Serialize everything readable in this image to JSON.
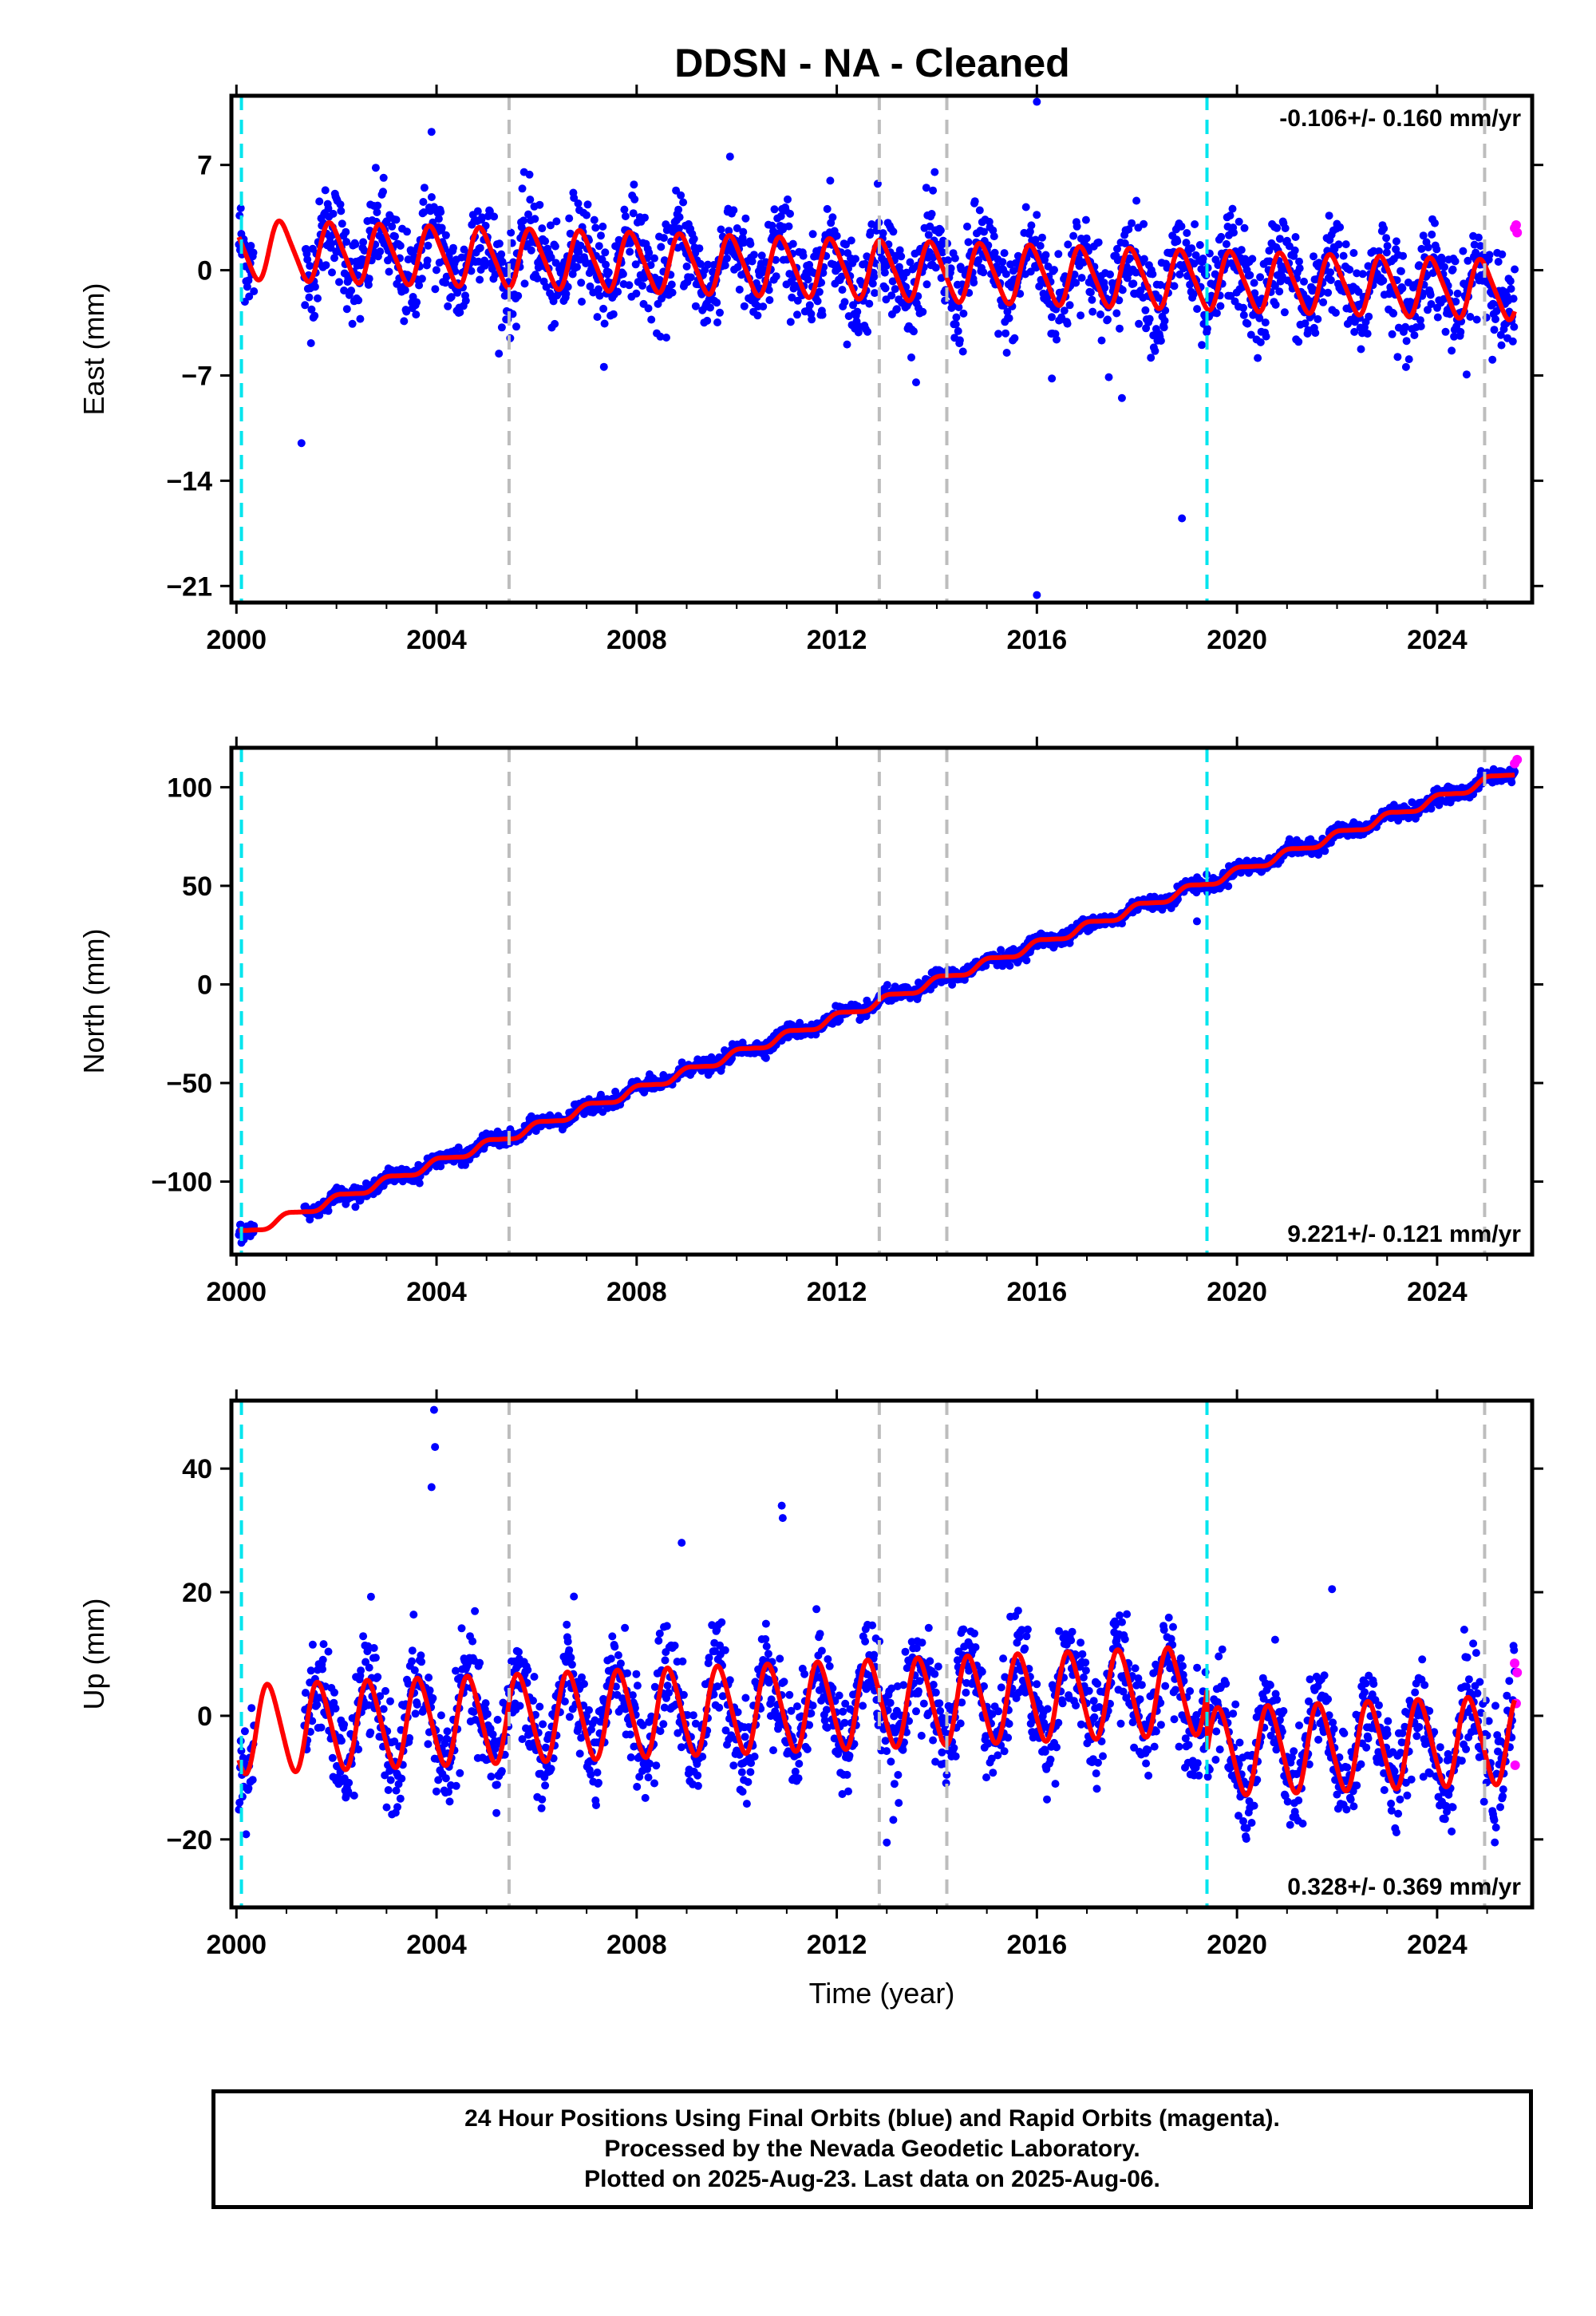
{
  "title": "DDSN  - NA - Cleaned",
  "colors": {
    "final_points": "#0000ff",
    "rapid_points": "#ff00ff",
    "model_line": "#ff0000",
    "event_line_cyan": "#00e5ee",
    "event_line_gray": "#bdbdbd"
  },
  "footer": {
    "line1": "24 Hour Positions Using Final Orbits (blue) and Rapid Orbits (magenta).",
    "line2": "Processed by the Nevada Geodetic Laboratory.",
    "line3": "Plotted on 2025-Aug-23. Last data on 2025-Aug-06."
  },
  "chart_data": [
    {
      "type": "scatter",
      "component": "east",
      "ylabel": "East (mm)",
      "xlabel": "",
      "rate_label": "-0.106+/- 0.160 mm/yr",
      "xlim": [
        1999.9,
        2025.9
      ],
      "ylim": [
        -22.1,
        11.6
      ],
      "xticks": [
        2000,
        2004,
        2008,
        2012,
        2016,
        2020,
        2024
      ],
      "yticks": [
        7,
        0,
        -7,
        -14,
        -21
      ],
      "ytick_labels": [
        "7",
        "0",
        "−7",
        "−14",
        "−21"
      ],
      "event_lines": {
        "cyan": [
          2000.1,
          2019.4
        ],
        "gray": [
          2005.45,
          2012.85,
          2014.2,
          2024.95
        ]
      },
      "model": {
        "intercept": 0.0,
        "rate": -0.106,
        "ref_year": 2013.0,
        "annual_amp": 1.9,
        "semiannual_amp": 0.3,
        "phase": 0.35
      },
      "scatter_sigma": 1.6,
      "outliers": [
        [
          2016.0,
          11.2
        ],
        [
          2016.0,
          -21.6
        ],
        [
          2018.9,
          -16.5
        ],
        [
          2001.3,
          -11.5
        ],
        [
          2003.9,
          9.2
        ],
        [
          2017.7,
          -8.5
        ],
        [
          2016.3,
          -7.2
        ]
      ],
      "rapid_points": [
        [
          2025.55,
          2.8
        ],
        [
          2025.6,
          2.5
        ],
        [
          2025.58,
          3.0
        ]
      ]
    },
    {
      "type": "scatter",
      "component": "north",
      "ylabel": "North (mm)",
      "xlabel": "",
      "rate_label": "9.221+/- 0.121 mm/yr",
      "xlim": [
        1999.9,
        2025.9
      ],
      "ylim": [
        -137,
        120
      ],
      "xticks": [
        2000,
        2004,
        2008,
        2012,
        2016,
        2020,
        2024
      ],
      "yticks": [
        100,
        50,
        0,
        -50,
        -100
      ],
      "ytick_labels": [
        "100",
        "50",
        "0",
        "−50",
        "−100"
      ],
      "event_lines": {
        "cyan": [
          2000.1,
          2019.4
        ],
        "gray": [
          2005.45,
          2012.85,
          2014.2,
          2024.95
        ]
      },
      "model": {
        "intercept": -7.5,
        "rate": 9.221,
        "ref_year": 2013.0,
        "annual_amp": 2.0,
        "semiannual_amp": 0.4,
        "phase": 0.2
      },
      "scatter_sigma": 1.8,
      "outliers": [
        [
          2019.2,
          32.0
        ],
        [
          2000.1,
          -131.0
        ],
        [
          2000.15,
          -128.0
        ]
      ],
      "rapid_points": [
        [
          2025.55,
          112.0
        ],
        [
          2025.6,
          114.0
        ]
      ]
    },
    {
      "type": "scatter",
      "component": "up",
      "ylabel": "Up (mm)",
      "xlabel": "Time (year)",
      "rate_label": "0.328+/- 0.369 mm/yr",
      "xlim": [
        1999.9,
        2025.9
      ],
      "ylim": [
        -31,
        51
      ],
      "xticks": [
        2000,
        2004,
        2008,
        2012,
        2016,
        2020,
        2024
      ],
      "yticks": [
        40,
        20,
        0,
        -20
      ],
      "ytick_labels": [
        "40",
        "20",
        "0",
        "−20"
      ],
      "event_lines": {
        "cyan": [
          2000.1,
          2019.4
        ],
        "gray": [
          2005.45,
          2012.85,
          2014.2,
          2024.95
        ]
      },
      "model": {
        "intercept": 2.0,
        "rate": 0.328,
        "ref_year": 2013.0,
        "annual_amp": 7.0,
        "semiannual_amp": 0.8,
        "phase": 0.6,
        "step_year": 2019.4,
        "step_size": -10.0
      },
      "scatter_sigma": 4.0,
      "outliers": [
        [
          2003.95,
          49.5
        ],
        [
          2003.97,
          43.5
        ],
        [
          2003.9,
          37.0
        ],
        [
          2010.9,
          34.0
        ],
        [
          2010.92,
          32.0
        ],
        [
          2008.9,
          28.0
        ],
        [
          2021.9,
          20.5
        ],
        [
          2013.0,
          -20.5
        ]
      ],
      "rapid_points": [
        [
          2025.55,
          8.5
        ],
        [
          2025.6,
          7.0
        ],
        [
          2025.58,
          2.0
        ],
        [
          2025.56,
          -8.0
        ]
      ]
    }
  ]
}
